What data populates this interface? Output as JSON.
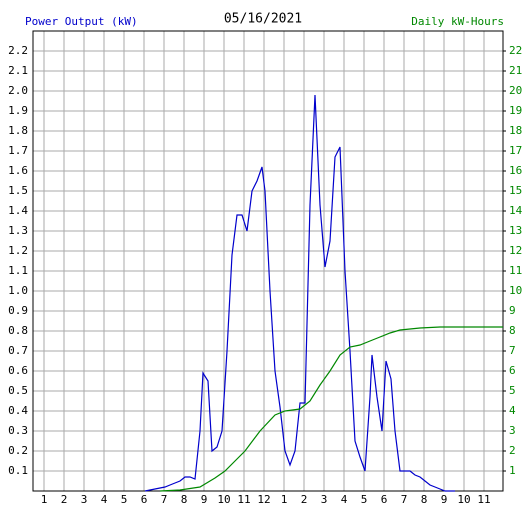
{
  "chart_data": {
    "type": "line",
    "title": "05/16/2021",
    "ylabel": "Power Output (kW)",
    "y2label": "Daily kW-Hours",
    "xlim": [
      0.45,
      23.95
    ],
    "xticks": [
      1,
      2,
      3,
      4,
      5,
      6,
      7,
      8,
      9,
      10,
      11,
      12,
      {
        "value": 13,
        "label": "1"
      },
      {
        "value": 14,
        "label": "2"
      },
      {
        "value": 15,
        "label": "3"
      },
      {
        "value": 16,
        "label": "4"
      },
      {
        "value": 17,
        "label": "5"
      },
      {
        "value": 18,
        "label": "6"
      },
      {
        "value": 19,
        "label": "7"
      },
      {
        "value": 20,
        "label": "8"
      },
      {
        "value": 21,
        "label": "9"
      },
      {
        "value": 22,
        "label": "10"
      },
      {
        "value": 23,
        "label": "11"
      }
    ],
    "ylim": [
      0,
      2.3
    ],
    "yticks": [
      0.1,
      0.2,
      0.3,
      0.4,
      0.5,
      0.6,
      0.7,
      0.8,
      0.9,
      {
        "value": 1,
        "label": "1.0"
      },
      1.1,
      1.2,
      1.3,
      1.4,
      1.5,
      1.6,
      1.7,
      1.8,
      1.9,
      {
        "value": 2,
        "label": "2.0"
      },
      2.1,
      2.2
    ],
    "y2lim": [
      0,
      23
    ],
    "y2ticks": [
      1,
      2,
      3,
      4,
      5,
      6,
      7,
      8,
      9,
      10,
      11,
      12,
      13,
      14,
      15,
      16,
      17,
      18,
      19,
      20,
      21,
      22
    ],
    "grid": true,
    "ycolor": "#0000cc",
    "y2color": "#008800",
    "series": [
      {
        "color": "#0000cc",
        "x": [
          6.05,
          6.55,
          7.05,
          7.3,
          7.55,
          7.8,
          8.05,
          8.3,
          8.55,
          8.8,
          8.95,
          9.2,
          9.4,
          9.65,
          9.9,
          10.15,
          10.4,
          10.65,
          10.9,
          11.15,
          11.4,
          11.65,
          11.9,
          12.05,
          12.3,
          12.55,
          12.8,
          13.05,
          13.3,
          13.55,
          13.8,
          14.05,
          14.3,
          14.55,
          14.8,
          15.05,
          15.3,
          15.55,
          15.8,
          16.05,
          16.3,
          16.55,
          16.8,
          17.05,
          17.3,
          17.4,
          17.65,
          17.9,
          18.1,
          18.35,
          18.55,
          18.8,
          19.05,
          19.3,
          19.55,
          19.8,
          20.05,
          20.3,
          20.55,
          20.8,
          21.05,
          21.55
        ],
        "values": [
          0,
          0.01,
          0.02,
          0.03,
          0.04,
          0.05,
          0.07,
          0.07,
          0.06,
          0.3,
          0.59,
          0.55,
          0.2,
          0.22,
          0.3,
          0.7,
          1.18,
          1.38,
          1.38,
          1.3,
          1.5,
          1.55,
          1.62,
          1.5,
          1.0,
          0.6,
          0.42,
          0.2,
          0.13,
          0.2,
          0.44,
          0.44,
          1.43,
          1.98,
          1.43,
          1.12,
          1.25,
          1.67,
          1.72,
          1.1,
          0.7,
          0.25,
          0.17,
          0.1,
          0.47,
          0.68,
          0.47,
          0.3,
          0.65,
          0.56,
          0.3,
          0.1,
          0.1,
          0.1,
          0.08,
          0.07,
          0.05,
          0.03,
          0.02,
          0.01,
          0,
          0
        ]
      },
      {
        "color": "#008800",
        "axis": "y2",
        "x": [
          6.8,
          7.8,
          8.8,
          9.3,
          9.55,
          10.05,
          10.55,
          11.05,
          11.8,
          12.55,
          13.05,
          13.8,
          14.3,
          14.8,
          15.3,
          15.8,
          16.3,
          16.8,
          17.3,
          17.8,
          18.3,
          18.8,
          19.8,
          20.8,
          23.95
        ],
        "values": [
          0,
          0.05,
          0.2,
          0.5,
          0.65,
          1.0,
          1.5,
          2.0,
          3.0,
          3.8,
          4.0,
          4.1,
          4.5,
          5.3,
          6.0,
          6.8,
          7.2,
          7.3,
          7.5,
          7.7,
          7.9,
          8.05,
          8.15,
          8.2,
          8.2
        ]
      }
    ]
  }
}
